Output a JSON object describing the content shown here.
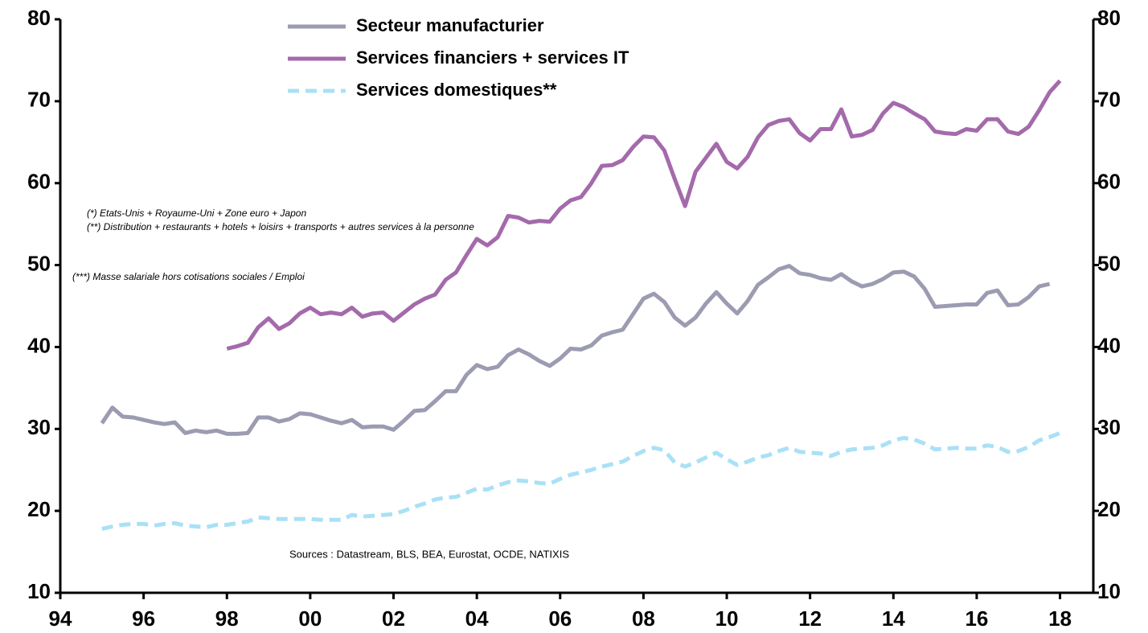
{
  "chart_data": {
    "type": "line",
    "x": [
      1995,
      1995.25,
      1995.5,
      1995.75,
      1996,
      1996.25,
      1996.5,
      1996.75,
      1997,
      1997.25,
      1997.5,
      1997.75,
      1998,
      1998.25,
      1998.5,
      1998.75,
      1999,
      1999.25,
      1999.5,
      1999.75,
      2000,
      2000.25,
      2000.5,
      2000.75,
      2001,
      2001.25,
      2001.5,
      2001.75,
      2002,
      2002.25,
      2002.5,
      2002.75,
      2003,
      2003.25,
      2003.5,
      2003.75,
      2004,
      2004.25,
      2004.5,
      2004.75,
      2005,
      2005.25,
      2005.5,
      2005.75,
      2006,
      2006.25,
      2006.5,
      2006.75,
      2007,
      2007.25,
      2007.5,
      2007.75,
      2008,
      2008.25,
      2008.5,
      2008.75,
      2009,
      2009.25,
      2009.5,
      2009.75,
      2010,
      2010.25,
      2010.5,
      2010.75,
      2011,
      2011.25,
      2011.5,
      2011.75,
      2012,
      2012.25,
      2012.5,
      2012.75,
      2013,
      2013.25,
      2013.5,
      2013.75,
      2014,
      2014.25,
      2014.5,
      2014.75,
      2015,
      2015.25,
      2015.5,
      2015.75,
      2016,
      2016.25,
      2016.5,
      2016.75,
      2017,
      2017.25,
      2017.5,
      2017.75,
      2018
    ],
    "xlim": [
      1994,
      2018.8
    ],
    "xticks": [
      {
        "value": 1994,
        "label": "94"
      },
      {
        "value": 1996,
        "label": "96"
      },
      {
        "value": 1998,
        "label": "98"
      },
      {
        "value": 2000,
        "label": "00"
      },
      {
        "value": 2002,
        "label": "02"
      },
      {
        "value": 2004,
        "label": "04"
      },
      {
        "value": 2006,
        "label": "06"
      },
      {
        "value": 2008,
        "label": "08"
      },
      {
        "value": 2010,
        "label": "10"
      },
      {
        "value": 2012,
        "label": "12"
      },
      {
        "value": 2014,
        "label": "14"
      },
      {
        "value": 2016,
        "label": "16"
      },
      {
        "value": 2018,
        "label": "18"
      }
    ],
    "ylim": [
      10,
      80
    ],
    "yticks": [
      10,
      20,
      30,
      40,
      50,
      60,
      70,
      80
    ],
    "y2lim": [
      10,
      80
    ],
    "y2ticks": [
      10,
      20,
      30,
      40,
      50,
      60,
      70,
      80
    ],
    "series": [
      {
        "name": "Secteur manufacturier",
        "color": "#9b9bb2",
        "dashed": false,
        "values": [
          30.7,
          32.6,
          31.5,
          31.4,
          31.1,
          30.8,
          30.6,
          30.8,
          29.5,
          29.8,
          29.6,
          29.8,
          29.4,
          29.4,
          29.5,
          31.4,
          31.4,
          30.9,
          31.2,
          31.9,
          31.8,
          31.4,
          31.0,
          30.7,
          31.1,
          30.2,
          30.3,
          30.3,
          29.9,
          31.0,
          32.2,
          32.3,
          33.4,
          34.6,
          34.6,
          36.6,
          37.8,
          37.3,
          37.6,
          39.0,
          39.7,
          39.1,
          38.3,
          37.7,
          38.6,
          39.8,
          39.7,
          40.2,
          41.4,
          41.8,
          42.1,
          44.0,
          45.9,
          46.5,
          45.5,
          43.6,
          42.6,
          43.6,
          45.3,
          46.7,
          45.3,
          44.1,
          45.6,
          47.6,
          48.5,
          49.5,
          49.9,
          49.0,
          48.8,
          48.4,
          48.2,
          48.9,
          48.0,
          47.4,
          47.7,
          48.3,
          49.1,
          49.2,
          48.6,
          47.1,
          44.9,
          45.0,
          45.1,
          45.2,
          45.2,
          46.6,
          46.9,
          45.1,
          45.2,
          46.1,
          47.4,
          47.7,
          null
        ]
      },
      {
        "name": "Services financiers + services IT",
        "color": "#a46aab",
        "dashed": false,
        "values": [
          null,
          null,
          null,
          null,
          null,
          null,
          null,
          null,
          null,
          null,
          null,
          null,
          39.8,
          40.1,
          40.5,
          42.4,
          43.5,
          42.2,
          42.9,
          44.1,
          44.8,
          44.0,
          44.2,
          44.0,
          44.8,
          43.7,
          44.1,
          44.2,
          43.2,
          44.2,
          45.2,
          45.9,
          46.4,
          48.2,
          49.1,
          51.2,
          53.2,
          52.4,
          53.4,
          56.0,
          55.8,
          55.2,
          55.4,
          55.3,
          56.9,
          57.9,
          58.3,
          60.0,
          62.1,
          62.2,
          62.8,
          64.4,
          65.7,
          65.6,
          64.0,
          60.5,
          57.2,
          61.4,
          63.1,
          64.8,
          62.6,
          61.8,
          63.2,
          65.6,
          67.1,
          67.6,
          67.8,
          66.1,
          65.2,
          66.6,
          66.6,
          69.0,
          65.7,
          65.9,
          66.5,
          68.5,
          69.8,
          69.3,
          68.5,
          67.8,
          66.3,
          66.1,
          66.0,
          66.6,
          66.4,
          67.8,
          67.8,
          66.3,
          66.0,
          66.9,
          68.9,
          71.1,
          72.5
        ]
      },
      {
        "name": "Services domestiques**",
        "color": "#a9e1f6",
        "dashed": true,
        "values": [
          17.8,
          18.1,
          18.3,
          18.4,
          18.4,
          18.2,
          18.4,
          18.5,
          18.2,
          18.1,
          18.0,
          18.3,
          18.3,
          18.5,
          18.7,
          19.2,
          19.1,
          19.0,
          19.0,
          19.0,
          19.0,
          18.9,
          18.9,
          18.9,
          19.5,
          19.3,
          19.4,
          19.5,
          19.6,
          20.0,
          20.5,
          20.9,
          21.4,
          21.6,
          21.7,
          22.2,
          22.7,
          22.6,
          23.1,
          23.5,
          23.7,
          23.6,
          23.4,
          23.3,
          23.9,
          24.4,
          24.7,
          25.0,
          25.4,
          25.7,
          26.0,
          26.7,
          27.3,
          27.7,
          27.4,
          25.9,
          25.4,
          25.9,
          26.5,
          27.1,
          26.3,
          25.6,
          26.0,
          26.5,
          26.8,
          27.3,
          27.7,
          27.2,
          27.1,
          27.0,
          26.7,
          27.2,
          27.5,
          27.6,
          27.7,
          28.0,
          28.6,
          28.9,
          28.7,
          28.2,
          27.5,
          27.6,
          27.7,
          27.6,
          27.6,
          28.0,
          27.8,
          27.2,
          27.3,
          27.8,
          28.6,
          29.0,
          29.5
        ]
      }
    ],
    "annotations": [
      "(*) Etats-Unis + Royaume-Uni + Zone euro + Japon",
      "(**) Distribution + restaurants + hotels + loisirs +  transports + autres services à la personne",
      "(***) Masse salariale hors cotisations sociales / Emploi",
      "Sources : Datastream, BLS, BEA, Eurostat, OCDE, NATIXIS"
    ]
  }
}
